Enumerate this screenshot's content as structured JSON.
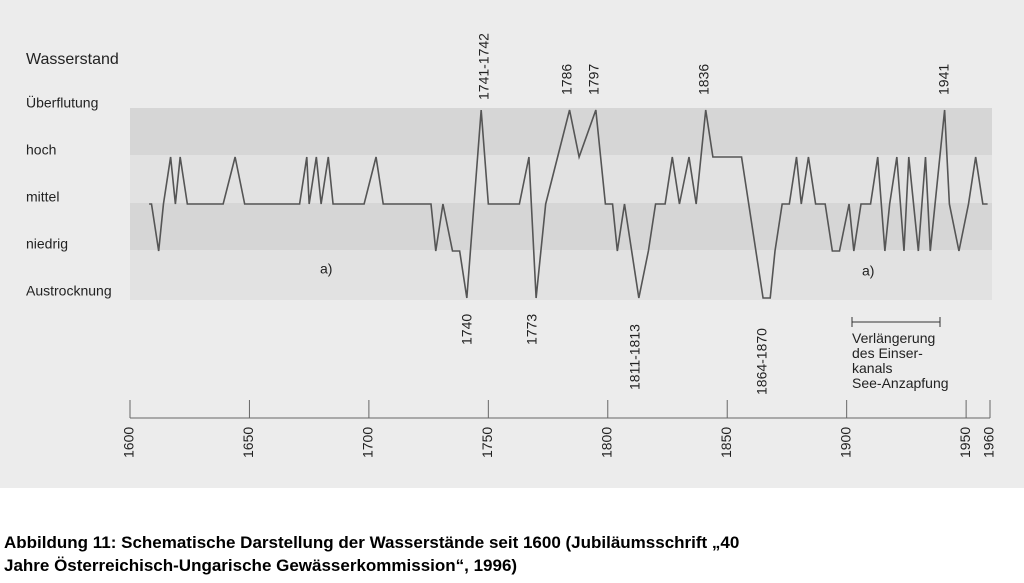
{
  "chart_data": {
    "type": "line",
    "ylabel": "Wasserstand",
    "x": [
      1608,
      1609,
      1612,
      1614,
      1617,
      1619,
      1621,
      1624,
      1629,
      1639,
      1644,
      1648,
      1650,
      1671,
      1674,
      1675,
      1678,
      1680,
      1683,
      1685,
      1690,
      1698,
      1703,
      1706,
      1726,
      1728,
      1731,
      1735,
      1738,
      1741,
      1744,
      1747,
      1750,
      1763,
      1767,
      1770,
      1774,
      1779,
      1784,
      1788,
      1795,
      1799,
      1802,
      1804,
      1807,
      1810,
      1813,
      1817,
      1820,
      1824,
      1827,
      1830,
      1834,
      1837,
      1841,
      1844,
      1847,
      1856,
      1859,
      1862,
      1865,
      1868,
      1870,
      1873,
      1876,
      1879,
      1881,
      1884,
      1887,
      1891,
      1894,
      1897,
      1901,
      1903,
      1906,
      1910,
      1913,
      1916,
      1918,
      1921,
      1924,
      1926,
      1930,
      1933,
      1935,
      1941,
      1943,
      1947,
      1951,
      1954,
      1957,
      1959
    ],
    "series": [
      {
        "color": "#555555",
        "values": [
          2,
          2,
          1,
          2,
          3,
          2,
          3,
          2,
          2,
          2,
          3,
          2,
          2,
          2,
          3,
          2,
          3,
          2,
          3,
          2,
          2,
          2,
          3,
          2,
          2,
          1,
          2,
          1,
          1,
          0,
          2,
          4,
          2,
          2,
          3,
          0,
          2,
          3,
          4,
          3,
          4,
          2,
          2,
          1,
          2,
          1,
          0,
          1,
          2,
          2,
          3,
          2,
          3,
          2,
          4,
          3,
          3,
          3,
          2,
          1,
          0,
          0,
          1,
          2,
          2,
          3,
          2,
          3,
          2,
          2,
          1,
          1,
          2,
          1,
          2,
          2,
          3,
          1,
          2,
          3,
          1,
          3,
          1,
          3,
          1,
          4,
          2,
          1,
          2,
          3,
          2,
          2
        ]
      }
    ],
    "xlim": [
      1600,
      1960
    ],
    "xticks": [
      1600,
      1650,
      1700,
      1750,
      1800,
      1850,
      1900,
      1950,
      1960
    ],
    "ylim": [
      0,
      4
    ],
    "yticks": [
      {
        "value": 4,
        "label": "Überflutung"
      },
      {
        "value": 3,
        "label": "hoch"
      },
      {
        "value": 2,
        "label": "mittel"
      },
      {
        "value": 1,
        "label": "niedrig"
      },
      {
        "value": 0,
        "label": "Austrocknung"
      }
    ],
    "annotations": [
      "1741-1742",
      "1786",
      "1797",
      "1836",
      "1941",
      "1740",
      "1773",
      "1811-1813",
      "1864-1870",
      "a)",
      "a)"
    ],
    "note": [
      "Verlängerung",
      "des Einser-",
      "kanals",
      "See-Anzapfung"
    ]
  },
  "caption": [
    "Abbildung 11: Schematische Darstellung der Wasserstände seit 1600 (Jubiläumsschrift „40",
    "Jahre Österreichisch-Ungarische Gewässerkommission“, 1996)"
  ]
}
